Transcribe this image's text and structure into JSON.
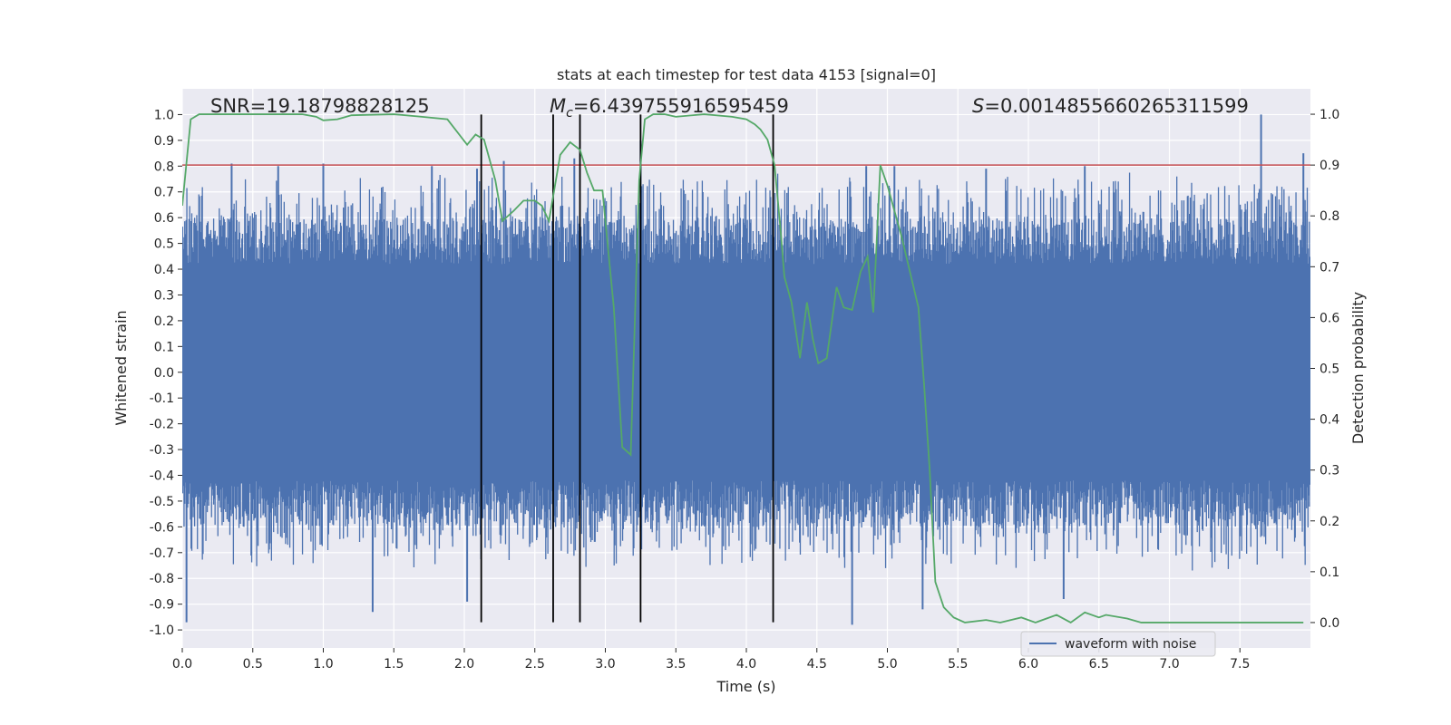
{
  "chart_data": {
    "type": "line",
    "title": "stats at each timestep for test data 4153 [signal=0]",
    "xlabel": "Time (s)",
    "ylabel": "Whitened strain",
    "ylabel_right": "Detection probability",
    "xlim": [
      0,
      8
    ],
    "ylim": [
      -1.07,
      1.1
    ],
    "ylim_right": [
      -0.05,
      1.05
    ],
    "x_ticks": [
      0.0,
      0.5,
      1.0,
      1.5,
      2.0,
      2.5,
      3.0,
      3.5,
      4.0,
      4.5,
      5.0,
      5.5,
      6.0,
      6.5,
      7.0,
      7.5
    ],
    "x_tick_labels": [
      "0.0",
      "0.5",
      "1.0",
      "1.5",
      "2.0",
      "2.5",
      "3.0",
      "3.5",
      "4.0",
      "4.5",
      "5.0",
      "5.5",
      "6.0",
      "6.5",
      "7.0",
      "7.5"
    ],
    "y_ticks": [
      1.0,
      0.9,
      0.8,
      0.7,
      0.6,
      0.5,
      0.4,
      0.3,
      0.2,
      0.1,
      0.0,
      -0.1,
      -0.2,
      -0.3,
      -0.4,
      -0.5,
      -0.6,
      -0.7,
      -0.8,
      -0.9,
      -1.0
    ],
    "y_tick_labels": [
      "1.0",
      "0.9",
      "0.8",
      "0.7",
      "0.6",
      "0.5",
      "0.4",
      "0.3",
      "0.2",
      "0.1",
      "0.0",
      "-0.1",
      "-0.2",
      "-0.3",
      "-0.4",
      "-0.5",
      "-0.6",
      "-0.7",
      "-0.8",
      "-0.9",
      "-1.0"
    ],
    "y_right_ticks": [
      1.0,
      0.9,
      0.8,
      0.7,
      0.6,
      0.5,
      0.4,
      0.3,
      0.2,
      0.1,
      0.0
    ],
    "y_right_tick_labels": [
      "1.0",
      "0.9",
      "0.8",
      "0.7",
      "0.6",
      "0.5",
      "0.4",
      "0.3",
      "0.2",
      "0.1",
      "0.0"
    ],
    "grid": true,
    "annotations": {
      "snr": "SNR=19.18798828125",
      "mc_symbol": "M",
      "mc_sub": "c",
      "mc_value": "=6.439755916595459",
      "s_symbol": "S",
      "s_value": "=0.0014855660265311599"
    },
    "legend": {
      "label": "waveform with noise",
      "position": "lower-right"
    },
    "threshold": {
      "axis": "right",
      "value": 0.9,
      "color": "#c44e52"
    },
    "vertical_lines": {
      "x": [
        2.12,
        2.63,
        2.82,
        3.25,
        4.19
      ],
      "ymin": -0.97,
      "ymax": 1.0,
      "color": "#000000"
    },
    "series": [
      {
        "name": "waveform with noise",
        "axis": "left",
        "kind": "dense_noise",
        "color": "#4c72b0",
        "sample_count": 1600,
        "peaks": [
          {
            "x": 0.35,
            "y": 0.81
          },
          {
            "x": 0.68,
            "y": 0.8
          },
          {
            "x": 1.0,
            "y": 0.81
          },
          {
            "x": 1.77,
            "y": 0.8
          },
          {
            "x": 2.09,
            "y": 0.79
          },
          {
            "x": 2.28,
            "y": 0.82
          },
          {
            "x": 2.78,
            "y": 0.83
          },
          {
            "x": 3.25,
            "y": 0.9
          },
          {
            "x": 4.85,
            "y": 0.8
          },
          {
            "x": 5.05,
            "y": 0.8
          },
          {
            "x": 5.7,
            "y": 0.79
          },
          {
            "x": 6.4,
            "y": 0.8
          },
          {
            "x": 7.65,
            "y": 1.0
          },
          {
            "x": 7.95,
            "y": 0.85
          }
        ],
        "troughs": [
          {
            "x": 0.03,
            "y": -0.97
          },
          {
            "x": 1.35,
            "y": -0.93
          },
          {
            "x": 2.02,
            "y": -0.89
          },
          {
            "x": 4.75,
            "y": -0.98
          },
          {
            "x": 5.25,
            "y": -0.92
          },
          {
            "x": 6.25,
            "y": -0.88
          }
        ]
      },
      {
        "name": "Detection probability",
        "axis": "right",
        "color": "#55a868",
        "x": [
          0.0,
          0.06,
          0.12,
          0.4,
          0.6,
          0.85,
          0.95,
          1.0,
          1.1,
          1.2,
          1.5,
          1.7,
          1.88,
          2.02,
          2.08,
          2.14,
          2.22,
          2.27,
          2.35,
          2.42,
          2.5,
          2.55,
          2.6,
          2.68,
          2.75,
          2.82,
          2.87,
          2.92,
          2.98,
          3.0,
          3.06,
          3.12,
          3.18,
          3.24,
          3.28,
          3.34,
          3.42,
          3.5,
          3.7,
          3.9,
          4.0,
          4.06,
          4.1,
          4.15,
          4.2,
          4.24,
          4.27,
          4.32,
          4.38,
          4.43,
          4.47,
          4.51,
          4.57,
          4.64,
          4.69,
          4.75,
          4.81,
          4.86,
          4.9,
          4.95,
          5.0,
          5.1,
          5.16,
          5.22,
          5.26,
          5.3,
          5.34,
          5.4,
          5.47,
          5.55,
          5.7,
          5.8,
          5.95,
          6.05,
          6.2,
          6.3,
          6.4,
          6.5,
          6.55,
          6.7,
          6.8,
          7.0,
          7.5,
          7.95
        ],
        "values": [
          0.82,
          0.99,
          1.0,
          1.0,
          1.0,
          1.0,
          0.995,
          0.988,
          0.99,
          0.998,
          1.0,
          0.995,
          0.99,
          0.94,
          0.96,
          0.95,
          0.87,
          0.79,
          0.81,
          0.83,
          0.83,
          0.82,
          0.79,
          0.92,
          0.945,
          0.93,
          0.885,
          0.85,
          0.85,
          0.79,
          0.62,
          0.345,
          0.33,
          0.87,
          0.99,
          1.0,
          1.0,
          0.995,
          1.0,
          0.995,
          0.99,
          0.98,
          0.97,
          0.95,
          0.9,
          0.78,
          0.68,
          0.63,
          0.52,
          0.63,
          0.56,
          0.51,
          0.52,
          0.66,
          0.62,
          0.615,
          0.69,
          0.72,
          0.61,
          0.9,
          0.86,
          0.76,
          0.69,
          0.62,
          0.47,
          0.3,
          0.08,
          0.03,
          0.01,
          0.0,
          0.005,
          0.0,
          0.01,
          0.0,
          0.015,
          0.0,
          0.02,
          0.01,
          0.015,
          0.008,
          0.0,
          0.0,
          0.0,
          0.0
        ]
      }
    ]
  }
}
